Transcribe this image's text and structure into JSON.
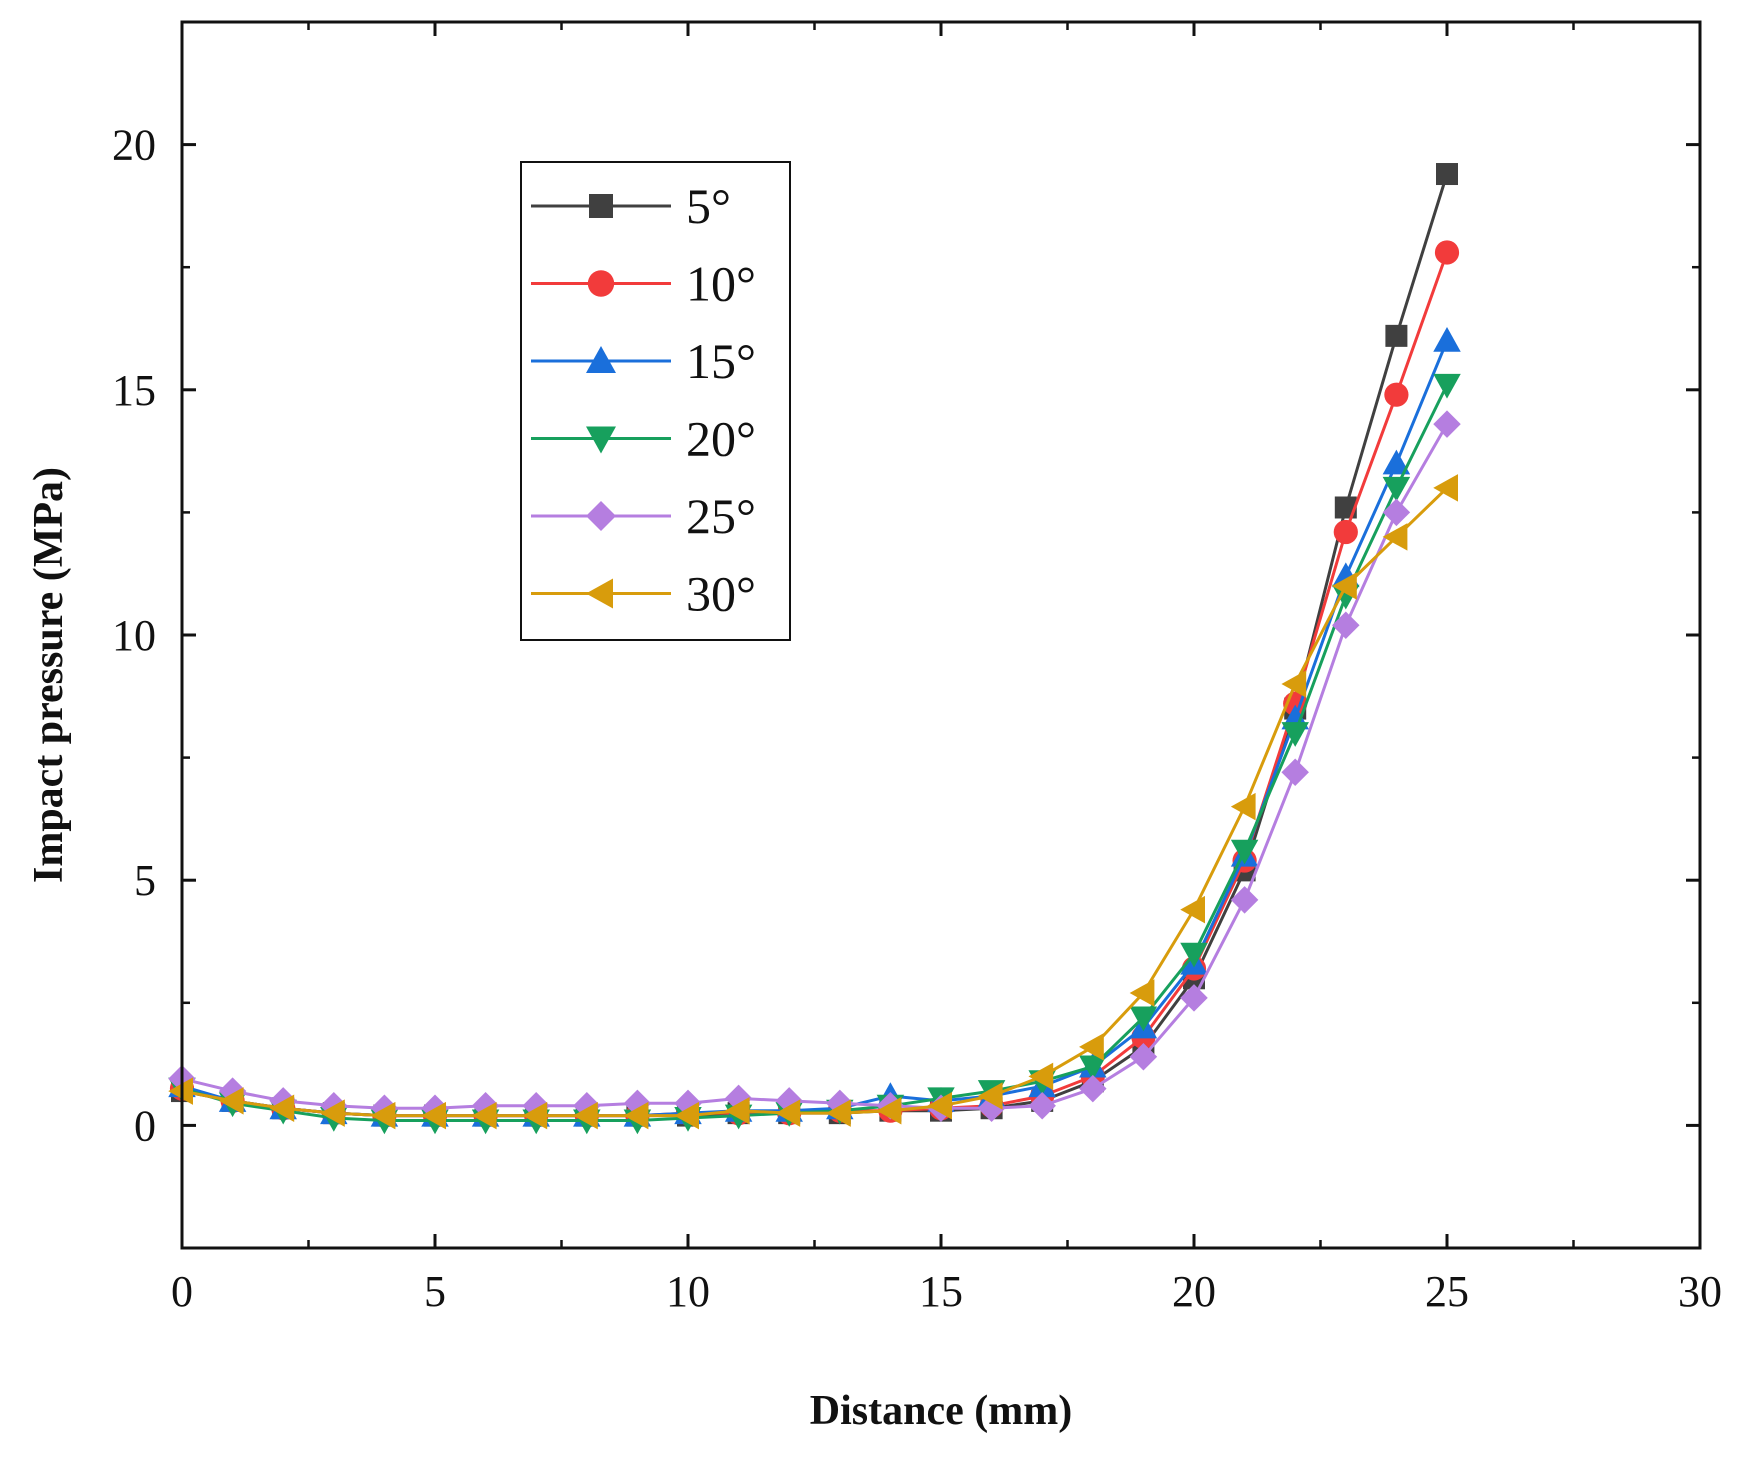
{
  "chart_data": {
    "type": "line",
    "title": "",
    "xlabel": "Distance (mm)",
    "ylabel": "Impact pressure (MPa)",
    "xlim": [
      0,
      30
    ],
    "ylim": [
      -2.5,
      22.5
    ],
    "xticks": [
      0,
      5,
      10,
      15,
      20,
      25,
      30
    ],
    "yticks": [
      0,
      5,
      10,
      15,
      20
    ],
    "xtick_labels": [
      "0",
      "5",
      "10",
      "15",
      "20",
      "25",
      "30"
    ],
    "ytick_labels": [
      "0",
      "5",
      "10",
      "15",
      "20"
    ],
    "grid": false,
    "legend_position": "upper-left",
    "x": [
      0,
      1,
      2,
      3,
      4,
      5,
      6,
      7,
      8,
      9,
      10,
      11,
      12,
      13,
      14,
      15,
      16,
      17,
      18,
      19,
      20,
      21,
      22,
      23,
      24,
      25
    ],
    "series": [
      {
        "name": "5°",
        "color": "#404040",
        "marker": "square",
        "values": [
          0.7,
          0.5,
          0.35,
          0.25,
          0.2,
          0.2,
          0.2,
          0.2,
          0.2,
          0.2,
          0.2,
          0.25,
          0.25,
          0.25,
          0.3,
          0.3,
          0.35,
          0.5,
          0.9,
          1.6,
          3.0,
          5.2,
          8.5,
          12.6,
          16.1,
          19.4
        ]
      },
      {
        "name": "10°",
        "color": "#f23b3b",
        "marker": "circle",
        "values": [
          0.75,
          0.5,
          0.35,
          0.25,
          0.2,
          0.2,
          0.2,
          0.2,
          0.2,
          0.2,
          0.25,
          0.25,
          0.25,
          0.3,
          0.3,
          0.35,
          0.4,
          0.6,
          1.0,
          1.8,
          3.2,
          5.4,
          8.6,
          12.1,
          14.9,
          17.8
        ]
      },
      {
        "name": "15°",
        "color": "#1a6fdb",
        "marker": "triangle-up",
        "values": [
          0.8,
          0.5,
          0.35,
          0.25,
          0.2,
          0.2,
          0.2,
          0.2,
          0.2,
          0.2,
          0.25,
          0.3,
          0.3,
          0.35,
          0.6,
          0.5,
          0.6,
          0.8,
          1.2,
          2.0,
          3.3,
          5.5,
          8.3,
          11.2,
          13.5,
          16.0
        ]
      },
      {
        "name": "20°",
        "color": "#17a05d",
        "marker": "triangle-down",
        "values": [
          0.75,
          0.45,
          0.3,
          0.15,
          0.1,
          0.1,
          0.1,
          0.1,
          0.1,
          0.1,
          0.15,
          0.2,
          0.25,
          0.3,
          0.4,
          0.55,
          0.7,
          0.9,
          1.2,
          2.2,
          3.5,
          5.6,
          8.0,
          10.8,
          13.0,
          15.1
        ]
      },
      {
        "name": "25°",
        "color": "#b57ee0",
        "marker": "diamond",
        "values": [
          0.95,
          0.7,
          0.5,
          0.4,
          0.35,
          0.35,
          0.4,
          0.4,
          0.4,
          0.45,
          0.45,
          0.55,
          0.5,
          0.45,
          0.4,
          0.35,
          0.35,
          0.4,
          0.75,
          1.4,
          2.6,
          4.6,
          7.2,
          10.2,
          12.5,
          14.3
        ]
      },
      {
        "name": "30°",
        "color": "#d89c0c",
        "marker": "triangle-left",
        "values": [
          0.7,
          0.5,
          0.35,
          0.25,
          0.2,
          0.2,
          0.2,
          0.2,
          0.2,
          0.2,
          0.2,
          0.3,
          0.25,
          0.25,
          0.3,
          0.4,
          0.6,
          1.0,
          1.6,
          2.7,
          4.4,
          6.5,
          9.0,
          11.0,
          12.0,
          13.0
        ]
      }
    ]
  }
}
